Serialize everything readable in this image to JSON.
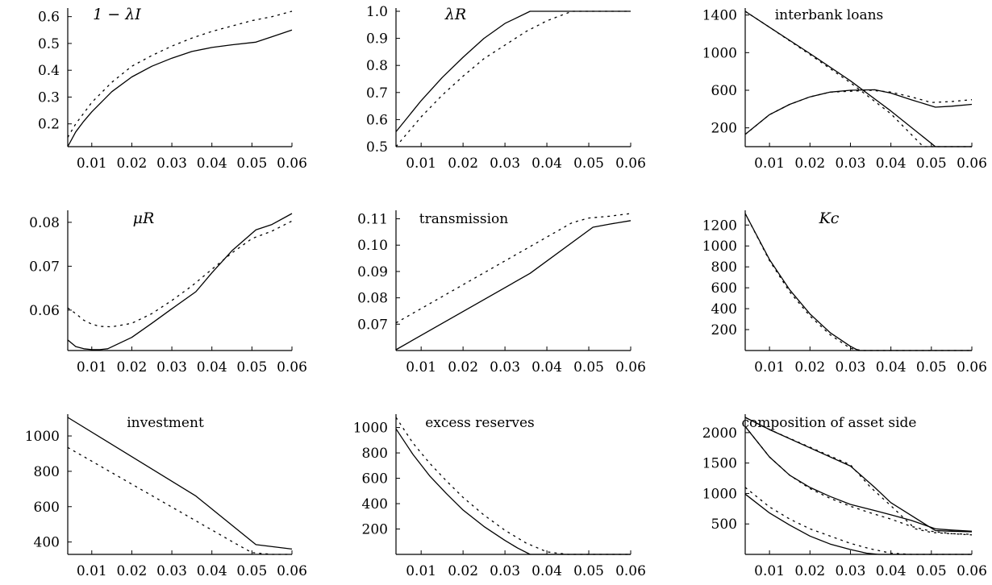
{
  "figure": {
    "panels": [
      {
        "key": "p1",
        "title": "1 − λI"
      },
      {
        "key": "p2",
        "title": "λR"
      },
      {
        "key": "p3",
        "title": "interbank loans"
      },
      {
        "key": "p4",
        "title": "μR"
      },
      {
        "key": "p5",
        "title": "transmission"
      },
      {
        "key": "p6",
        "title": "Kc"
      },
      {
        "key": "p7",
        "title": "investment"
      },
      {
        "key": "p8",
        "title": "excess reserves"
      },
      {
        "key": "p9",
        "title": "composition of asset side"
      }
    ]
  },
  "chart_data": [
    {
      "type": "line",
      "title": "1 − λI",
      "xlim": [
        0.004,
        0.06
      ],
      "ylim": [
        0.115,
        0.62
      ],
      "xticks": [
        0.01,
        0.02,
        0.03,
        0.04,
        0.05,
        0.06
      ],
      "xtick_labels": [
        "0.01",
        "0.02",
        "0.03",
        "0.04",
        "0.05",
        "0.06"
      ],
      "yticks": [
        0.2,
        0.3,
        0.4,
        0.5,
        0.6
      ],
      "ytick_labels": [
        "0.2",
        "0.3",
        "0.4",
        "0.5",
        "0.6"
      ],
      "series": [
        {
          "style": "solid",
          "x": [
            0.004,
            0.006,
            0.008,
            0.01,
            0.015,
            0.02,
            0.025,
            0.03,
            0.035,
            0.04,
            0.045,
            0.051,
            0.055,
            0.06
          ],
          "y": [
            0.115,
            0.17,
            0.21,
            0.245,
            0.32,
            0.375,
            0.415,
            0.445,
            0.47,
            0.485,
            0.495,
            0.505,
            0.525,
            0.55
          ]
        },
        {
          "style": "dashed",
          "x": [
            0.004,
            0.006,
            0.008,
            0.01,
            0.015,
            0.02,
            0.025,
            0.03,
            0.035,
            0.04,
            0.045,
            0.05,
            0.055,
            0.06
          ],
          "y": [
            0.15,
            0.2,
            0.24,
            0.28,
            0.355,
            0.415,
            0.455,
            0.49,
            0.52,
            0.545,
            0.565,
            0.585,
            0.6,
            0.62
          ]
        }
      ]
    },
    {
      "type": "line",
      "title": "λR",
      "xlim": [
        0.004,
        0.06
      ],
      "ylim": [
        0.5,
        1.0
      ],
      "xticks": [
        0.01,
        0.02,
        0.03,
        0.04,
        0.05,
        0.06
      ],
      "xtick_labels": [
        "0.01",
        "0.02",
        "0.03",
        "0.04",
        "0.05",
        "0.06"
      ],
      "yticks": [
        0.5,
        0.6,
        0.7,
        0.8,
        0.9,
        1.0
      ],
      "ytick_labels": [
        "0.5",
        "0.6",
        "0.7",
        "0.8",
        "0.9",
        "1.0"
      ],
      "series": [
        {
          "style": "solid",
          "x": [
            0.004,
            0.01,
            0.015,
            0.02,
            0.025,
            0.03,
            0.036,
            0.04,
            0.05,
            0.06
          ],
          "y": [
            0.555,
            0.67,
            0.755,
            0.83,
            0.9,
            0.955,
            1.0,
            1.0,
            1.0,
            1.0
          ]
        },
        {
          "style": "dashed",
          "x": [
            0.004,
            0.01,
            0.015,
            0.02,
            0.025,
            0.03,
            0.035,
            0.04,
            0.046,
            0.05,
            0.06
          ],
          "y": [
            0.5,
            0.61,
            0.69,
            0.76,
            0.825,
            0.875,
            0.925,
            0.965,
            1.0,
            1.0,
            1.0
          ]
        }
      ]
    },
    {
      "type": "line",
      "title": "interbank loans",
      "xlim": [
        0.004,
        0.06
      ],
      "ylim": [
        0,
        1440
      ],
      "xticks": [
        0.01,
        0.02,
        0.03,
        0.04,
        0.05,
        0.06
      ],
      "xtick_labels": [
        "0.01",
        "0.02",
        "0.03",
        "0.04",
        "0.05",
        "0.06"
      ],
      "yticks": [
        200,
        600,
        1000,
        1400
      ],
      "ytick_labels": [
        "200",
        "600",
        "1000",
        "1400"
      ],
      "series": [
        {
          "style": "solid",
          "x": [
            0.004,
            0.01,
            0.02,
            0.03,
            0.04,
            0.051,
            0.055,
            0.06
          ],
          "y": [
            1440,
            1270,
            990,
            700,
            380,
            0,
            0,
            0
          ]
        },
        {
          "style": "dashed",
          "x": [
            0.004,
            0.01,
            0.02,
            0.03,
            0.04,
            0.048,
            0.055,
            0.06
          ],
          "y": [
            1440,
            1270,
            980,
            680,
            350,
            0,
            0,
            0
          ]
        },
        {
          "style": "solid",
          "x": [
            0.004,
            0.01,
            0.015,
            0.02,
            0.025,
            0.03,
            0.036,
            0.04,
            0.045,
            0.051,
            0.055,
            0.06
          ],
          "y": [
            130,
            340,
            450,
            530,
            580,
            600,
            605,
            570,
            500,
            420,
            430,
            450
          ]
        },
        {
          "style": "dashed",
          "x": [
            0.004,
            0.01,
            0.015,
            0.02,
            0.025,
            0.03,
            0.035,
            0.04,
            0.045,
            0.05,
            0.055,
            0.06
          ],
          "y": [
            130,
            340,
            450,
            530,
            580,
            590,
            600,
            580,
            530,
            470,
            480,
            500
          ]
        }
      ]
    },
    {
      "type": "line",
      "title": "μR",
      "xlim": [
        0.004,
        0.06
      ],
      "ylim": [
        0.0508,
        0.082
      ],
      "xticks": [
        0.01,
        0.02,
        0.03,
        0.04,
        0.05,
        0.06
      ],
      "xtick_labels": [
        "0.01",
        "0.02",
        "0.03",
        "0.04",
        "0.05",
        "0.06"
      ],
      "yticks": [
        0.06,
        0.07,
        0.08
      ],
      "ytick_labels": [
        "0.06",
        "0.07",
        "0.08"
      ],
      "series": [
        {
          "style": "solid",
          "x": [
            0.004,
            0.006,
            0.008,
            0.01,
            0.012,
            0.014,
            0.02,
            0.025,
            0.03,
            0.036,
            0.04,
            0.045,
            0.051,
            0.055,
            0.06
          ],
          "y": [
            0.0532,
            0.0517,
            0.0512,
            0.051,
            0.051,
            0.0512,
            0.0538,
            0.057,
            0.0603,
            0.0642,
            0.0685,
            0.0735,
            0.0783,
            0.0795,
            0.082
          ]
        },
        {
          "style": "dashed",
          "x": [
            0.004,
            0.006,
            0.008,
            0.01,
            0.012,
            0.015,
            0.02,
            0.025,
            0.03,
            0.035,
            0.04,
            0.045,
            0.05,
            0.055,
            0.06
          ],
          "y": [
            0.0605,
            0.0592,
            0.0577,
            0.0568,
            0.0563,
            0.0562,
            0.057,
            0.0592,
            0.0622,
            0.0655,
            0.0693,
            0.073,
            0.0763,
            0.078,
            0.0803
          ]
        }
      ]
    },
    {
      "type": "line",
      "title": "transmission",
      "xlim": [
        0.004,
        0.06
      ],
      "ylim": [
        0.06,
        0.112
      ],
      "xticks": [
        0.01,
        0.02,
        0.03,
        0.04,
        0.05,
        0.06
      ],
      "xtick_labels": [
        "0.01",
        "0.02",
        "0.03",
        "0.04",
        "0.05",
        "0.06"
      ],
      "yticks": [
        0.07,
        0.08,
        0.09,
        0.1,
        0.11
      ],
      "ytick_labels": [
        "0.07",
        "0.08",
        "0.09",
        "0.10",
        "0.11"
      ],
      "series": [
        {
          "style": "solid",
          "x": [
            0.004,
            0.036,
            0.051,
            0.055,
            0.06
          ],
          "y": [
            0.0603,
            0.0893,
            0.1068,
            0.108,
            0.1093
          ]
        },
        {
          "style": "dashed",
          "x": [
            0.004,
            0.046,
            0.05,
            0.055,
            0.06
          ],
          "y": [
            0.0705,
            0.1085,
            0.1103,
            0.111,
            0.112
          ]
        }
      ]
    },
    {
      "type": "line",
      "title": "Kc",
      "xlim": [
        0.004,
        0.06
      ],
      "ylim": [
        0,
        1310
      ],
      "xticks": [
        0.01,
        0.02,
        0.03,
        0.04,
        0.05,
        0.06
      ],
      "xtick_labels": [
        "0.01",
        "0.02",
        "0.03",
        "0.04",
        "0.05",
        "0.06"
      ],
      "yticks": [
        200,
        400,
        600,
        800,
        1000,
        1200
      ],
      "ytick_labels": [
        "200",
        "400",
        "600",
        "800",
        "1000",
        "1200"
      ],
      "series": [
        {
          "style": "solid",
          "x": [
            0.004,
            0.01,
            0.015,
            0.02,
            0.025,
            0.03,
            0.032,
            0.034,
            0.04,
            0.05,
            0.06
          ],
          "y": [
            1310,
            870,
            580,
            350,
            170,
            40,
            0,
            0,
            0,
            0,
            0
          ]
        },
        {
          "style": "dashed",
          "x": [
            0.004,
            0.01,
            0.015,
            0.02,
            0.025,
            0.03,
            0.033,
            0.04,
            0.05,
            0.06
          ],
          "y": [
            1310,
            860,
            560,
            330,
            150,
            20,
            0,
            0,
            0,
            0
          ]
        }
      ]
    },
    {
      "type": "line",
      "title": "investment",
      "xlim": [
        0.004,
        0.06
      ],
      "ylim": [
        330,
        1105
      ],
      "xticks": [
        0.01,
        0.02,
        0.03,
        0.04,
        0.05,
        0.06
      ],
      "xtick_labels": [
        "0.01",
        "0.02",
        "0.03",
        "0.04",
        "0.05",
        "0.06"
      ],
      "yticks": [
        400,
        600,
        800,
        1000
      ],
      "ytick_labels": [
        "400",
        "600",
        "800",
        "1000"
      ],
      "series": [
        {
          "style": "solid",
          "x": [
            0.004,
            0.036,
            0.051,
            0.06
          ],
          "y": [
            1105,
            660,
            385,
            360
          ]
        },
        {
          "style": "dashed",
          "x": [
            0.004,
            0.046,
            0.05,
            0.055,
            0.06
          ],
          "y": [
            935,
            390,
            340,
            330,
            330
          ]
        }
      ]
    },
    {
      "type": "line",
      "title": "excess reserves",
      "xlim": [
        0.004,
        0.06
      ],
      "ylim": [
        0,
        1080
      ],
      "xticks": [
        0.01,
        0.02,
        0.03,
        0.04,
        0.05,
        0.06
      ],
      "xtick_labels": [
        "0.01",
        "0.02",
        "0.03",
        "0.04",
        "0.05",
        "0.06"
      ],
      "yticks": [
        200,
        400,
        600,
        800,
        1000
      ],
      "ytick_labels": [
        "200",
        "400",
        "600",
        "800",
        "1000"
      ],
      "series": [
        {
          "style": "solid",
          "x": [
            0.004,
            0.008,
            0.012,
            0.016,
            0.02,
            0.025,
            0.03,
            0.033,
            0.036,
            0.04,
            0.05,
            0.06
          ],
          "y": [
            990,
            790,
            620,
            480,
            350,
            220,
            110,
            50,
            0,
            0,
            0,
            0
          ]
        },
        {
          "style": "dashed",
          "x": [
            0.004,
            0.008,
            0.012,
            0.016,
            0.02,
            0.025,
            0.03,
            0.035,
            0.04,
            0.045,
            0.05,
            0.06
          ],
          "y": [
            1080,
            880,
            720,
            580,
            450,
            310,
            190,
            90,
            20,
            0,
            0,
            0
          ]
        }
      ]
    },
    {
      "type": "line",
      "title": "composition of asset side",
      "xlim": [
        0.004,
        0.06
      ],
      "ylim": [
        0,
        2250
      ],
      "xticks": [
        0.01,
        0.02,
        0.03,
        0.04,
        0.05,
        0.06
      ],
      "xtick_labels": [
        "0.01",
        "0.02",
        "0.03",
        "0.04",
        "0.05",
        "0.06"
      ],
      "yticks": [
        500,
        1000,
        1500,
        2000
      ],
      "ytick_labels": [
        "500",
        "1000",
        "1500",
        "2000"
      ],
      "series": [
        {
          "style": "solid",
          "x": [
            0.004,
            0.01,
            0.02,
            0.03,
            0.036,
            0.04,
            0.051,
            0.055,
            0.06
          ],
          "y": [
            2250,
            2050,
            1750,
            1450,
            1100,
            850,
            390,
            380,
            370
          ]
        },
        {
          "style": "dashed",
          "x": [
            0.004,
            0.01,
            0.02,
            0.03,
            0.035,
            0.04,
            0.046,
            0.05,
            0.055,
            0.06
          ],
          "y": [
            2250,
            2050,
            1760,
            1470,
            1100,
            800,
            420,
            360,
            340,
            330
          ]
        },
        {
          "style": "solid",
          "x": [
            0.004,
            0.01,
            0.015,
            0.02,
            0.025,
            0.03,
            0.036,
            0.04,
            0.045,
            0.051,
            0.055,
            0.06
          ],
          "y": [
            2100,
            1600,
            1300,
            1100,
            950,
            820,
            720,
            650,
            560,
            420,
            400,
            380
          ]
        },
        {
          "style": "dashed",
          "x": [
            0.004,
            0.01,
            0.015,
            0.02,
            0.025,
            0.03,
            0.035,
            0.04,
            0.045,
            0.05,
            0.055,
            0.06
          ],
          "y": [
            2100,
            1600,
            1300,
            1080,
            920,
            790,
            680,
            580,
            460,
            380,
            340,
            320
          ]
        },
        {
          "style": "solid",
          "x": [
            0.004,
            0.01,
            0.015,
            0.02,
            0.025,
            0.03,
            0.034,
            0.037,
            0.04,
            0.05,
            0.06
          ],
          "y": [
            990,
            680,
            480,
            300,
            170,
            80,
            20,
            0,
            0,
            0,
            0
          ]
        },
        {
          "style": "dashed",
          "x": [
            0.004,
            0.01,
            0.015,
            0.02,
            0.025,
            0.03,
            0.035,
            0.04,
            0.045,
            0.05,
            0.06
          ],
          "y": [
            1100,
            780,
            580,
            420,
            300,
            180,
            90,
            20,
            0,
            0,
            0
          ]
        }
      ]
    }
  ]
}
